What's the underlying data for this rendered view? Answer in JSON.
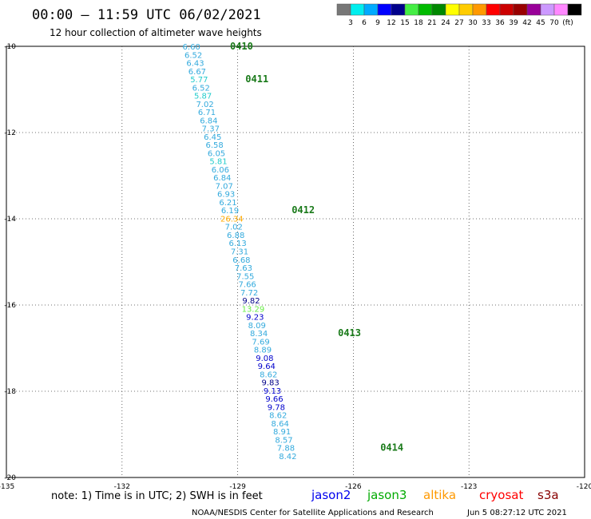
{
  "header": {
    "title": "00:00 – 11:59 UTC 06/02/2021",
    "subtitle": "12 hour collection of altimeter wave heights"
  },
  "colorbar": {
    "colors": [
      "#777777",
      "#00eeee",
      "#00aaff",
      "#0000ff",
      "#00008b",
      "#44ee44",
      "#00bb00",
      "#008800",
      "#ffff00",
      "#ffcc00",
      "#ff9900",
      "#ff0000",
      "#cc0000",
      "#990000",
      "#990099",
      "#cc99ff",
      "#ff88ff",
      "#000000"
    ],
    "labels": [
      "3",
      "6",
      "9",
      "12",
      "15",
      "18",
      "21",
      "24",
      "27",
      "30",
      "33",
      "36",
      "39",
      "42",
      "45",
      "70",
      "(ft)"
    ]
  },
  "chart_data": {
    "type": "scatter",
    "title": "00:00 – 11:59 UTC 06/02/2021",
    "subtitle": "12 hour collection of altimeter wave heights",
    "xlim": [
      -135,
      -120
    ],
    "ylim": [
      -20,
      -10
    ],
    "grid": true,
    "x_ticks": [
      "-135",
      "-132",
      "-129",
      "-126",
      "-123",
      "-120"
    ],
    "y_ticks": [
      "-10",
      "-12",
      "-14",
      "-16",
      "-18",
      "-20"
    ],
    "points": [
      {
        "lon": -130.2,
        "lat": -10.0,
        "v": "6.60",
        "c": "#33aadd"
      },
      {
        "lon": -130.15,
        "lat": -10.19,
        "v": "6.52",
        "c": "#33aadd"
      },
      {
        "lon": -130.1,
        "lat": -10.38,
        "v": "6.43",
        "c": "#33aadd"
      },
      {
        "lon": -130.05,
        "lat": -10.57,
        "v": "6.67",
        "c": "#33aadd"
      },
      {
        "lon": -130.0,
        "lat": -10.76,
        "v": "5.77",
        "c": "#22cccc"
      },
      {
        "lon": -129.95,
        "lat": -10.95,
        "v": "6.52",
        "c": "#33aadd"
      },
      {
        "lon": -129.9,
        "lat": -11.14,
        "v": "5.87",
        "c": "#22cccc"
      },
      {
        "lon": -129.85,
        "lat": -11.33,
        "v": "7.02",
        "c": "#33aadd"
      },
      {
        "lon": -129.8,
        "lat": -11.52,
        "v": "6.71",
        "c": "#33aadd"
      },
      {
        "lon": -129.75,
        "lat": -11.71,
        "v": "6.84",
        "c": "#33aadd"
      },
      {
        "lon": -129.7,
        "lat": -11.9,
        "v": "7.37",
        "c": "#33aadd"
      },
      {
        "lon": -129.65,
        "lat": -12.09,
        "v": "6.45",
        "c": "#33aadd"
      },
      {
        "lon": -129.6,
        "lat": -12.28,
        "v": "6.58",
        "c": "#33aadd"
      },
      {
        "lon": -129.55,
        "lat": -12.47,
        "v": "6.05",
        "c": "#33aadd"
      },
      {
        "lon": -129.5,
        "lat": -12.66,
        "v": "5.81",
        "c": "#22cccc"
      },
      {
        "lon": -129.45,
        "lat": -12.85,
        "v": "6.06",
        "c": "#33aadd"
      },
      {
        "lon": -129.4,
        "lat": -13.04,
        "v": "6.84",
        "c": "#33aadd"
      },
      {
        "lon": -129.35,
        "lat": -13.23,
        "v": "7.07",
        "c": "#33aadd"
      },
      {
        "lon": -129.3,
        "lat": -13.42,
        "v": "6.93",
        "c": "#33aadd"
      },
      {
        "lon": -129.25,
        "lat": -13.61,
        "v": "6.21",
        "c": "#33aadd"
      },
      {
        "lon": -129.2,
        "lat": -13.8,
        "v": "6.19",
        "c": "#33aadd"
      },
      {
        "lon": -129.15,
        "lat": -13.99,
        "v": "26.34",
        "c": "#ffaa00"
      },
      {
        "lon": -129.1,
        "lat": -14.18,
        "v": "7.02",
        "c": "#33aadd"
      },
      {
        "lon": -129.05,
        "lat": -14.37,
        "v": "6.88",
        "c": "#33aadd"
      },
      {
        "lon": -129.0,
        "lat": -14.56,
        "v": "6.13",
        "c": "#33aadd"
      },
      {
        "lon": -128.95,
        "lat": -14.75,
        "v": "7.31",
        "c": "#33aadd"
      },
      {
        "lon": -128.9,
        "lat": -14.94,
        "v": "6.68",
        "c": "#33aadd"
      },
      {
        "lon": -128.85,
        "lat": -15.13,
        "v": "7.63",
        "c": "#33aadd"
      },
      {
        "lon": -128.8,
        "lat": -15.32,
        "v": "7.55",
        "c": "#33aadd"
      },
      {
        "lon": -128.75,
        "lat": -15.51,
        "v": "7.66",
        "c": "#33aadd"
      },
      {
        "lon": -128.7,
        "lat": -15.7,
        "v": "7.72",
        "c": "#33aadd"
      },
      {
        "lon": -128.65,
        "lat": -15.89,
        "v": "9.82",
        "c": "#000088"
      },
      {
        "lon": -128.6,
        "lat": -16.08,
        "v": "13.29",
        "c": "#66ee44"
      },
      {
        "lon": -128.55,
        "lat": -16.27,
        "v": "9.23",
        "c": "#0000cc"
      },
      {
        "lon": -128.5,
        "lat": -16.46,
        "v": "8.09",
        "c": "#33aadd"
      },
      {
        "lon": -128.45,
        "lat": -16.65,
        "v": "8.34",
        "c": "#33aadd"
      },
      {
        "lon": -128.4,
        "lat": -16.84,
        "v": "7.69",
        "c": "#33aadd"
      },
      {
        "lon": -128.35,
        "lat": -17.03,
        "v": "8.89",
        "c": "#33aadd"
      },
      {
        "lon": -128.3,
        "lat": -17.22,
        "v": "9.08",
        "c": "#0000cc"
      },
      {
        "lon": -128.25,
        "lat": -17.41,
        "v": "9.64",
        "c": "#0000cc"
      },
      {
        "lon": -128.2,
        "lat": -17.6,
        "v": "8.62",
        "c": "#33aadd"
      },
      {
        "lon": -128.15,
        "lat": -17.79,
        "v": "9.83",
        "c": "#000088"
      },
      {
        "lon": -128.1,
        "lat": -17.98,
        "v": "9.13",
        "c": "#0000cc"
      },
      {
        "lon": -128.05,
        "lat": -18.17,
        "v": "9.66",
        "c": "#0000cc"
      },
      {
        "lon": -128.0,
        "lat": -18.36,
        "v": "9.78",
        "c": "#0000cc"
      },
      {
        "lon": -127.95,
        "lat": -18.55,
        "v": "8.62",
        "c": "#33aadd"
      },
      {
        "lon": -127.9,
        "lat": -18.74,
        "v": "8.64",
        "c": "#33aadd"
      },
      {
        "lon": -127.85,
        "lat": -18.93,
        "v": "8.91",
        "c": "#33aadd"
      },
      {
        "lon": -127.8,
        "lat": -19.12,
        "v": "8.57",
        "c": "#33aadd"
      },
      {
        "lon": -127.75,
        "lat": -19.31,
        "v": "7.88",
        "c": "#33aadd"
      },
      {
        "lon": -127.7,
        "lat": -19.5,
        "v": "8.42",
        "c": "#33aadd"
      }
    ],
    "time_labels": [
      {
        "lon": -128.9,
        "lat": -10.0,
        "label": "0410"
      },
      {
        "lon": -128.5,
        "lat": -10.76,
        "label": "0411"
      },
      {
        "lon": -127.3,
        "lat": -13.8,
        "label": "0412"
      },
      {
        "lon": -126.1,
        "lat": -16.65,
        "label": "0413"
      },
      {
        "lon": -125.0,
        "lat": -19.31,
        "label": "0414"
      }
    ]
  },
  "footer": {
    "note": "note: 1) Time is in UTC; 2) SWH is in feet",
    "satellites": [
      {
        "name": "jason2",
        "color": "#0000ee"
      },
      {
        "name": "jason3",
        "color": "#00aa00"
      },
      {
        "name": "altika",
        "color": "#ff9900"
      },
      {
        "name": "cryosat",
        "color": "#ff0000"
      },
      {
        "name": "s3a",
        "color": "#880000"
      }
    ],
    "credit": "NOAA/NESDIS Center for Satellite Applications and Research",
    "timestamp": "Jun 5 08:27:12 UTC 2021"
  }
}
